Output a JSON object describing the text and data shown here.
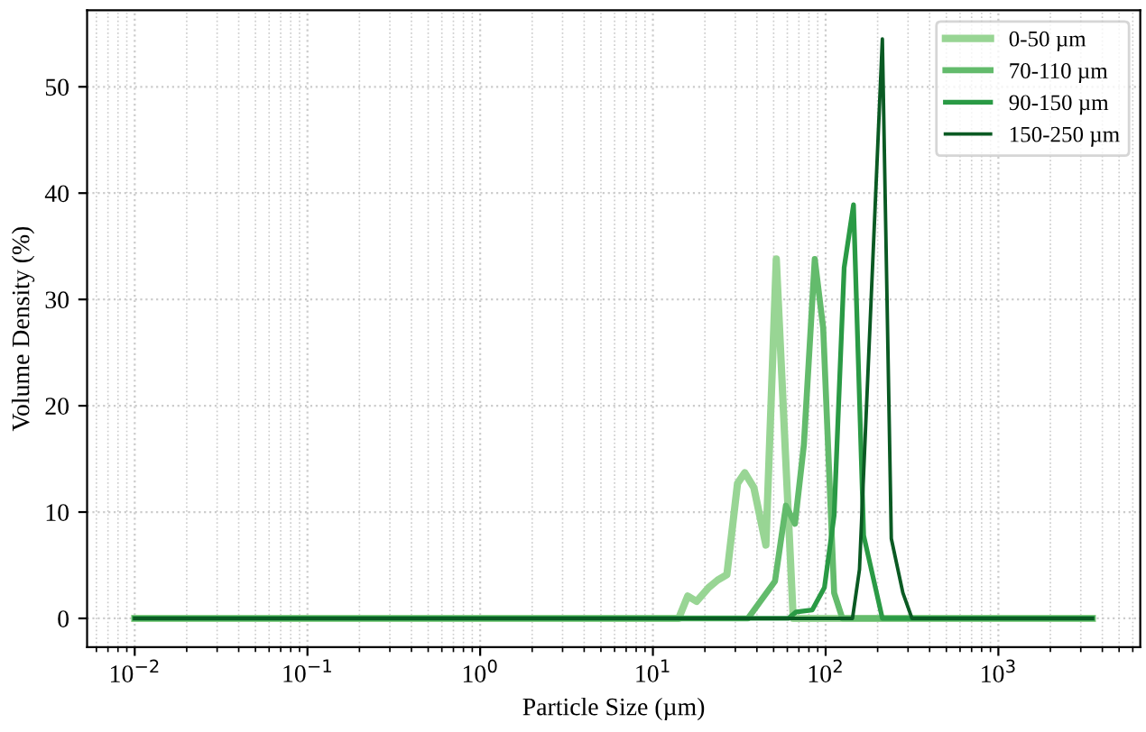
{
  "chart_data": {
    "type": "line",
    "xlabel": "Particle Size (µm)",
    "ylabel": "Volume Density (%)",
    "series": [
      {
        "name": "0-50 µm",
        "color": "#98d594",
        "x": [
          0.01,
          14.1,
          15.9,
          17.9,
          21.0,
          23.7,
          26.8,
          30.9,
          34.0,
          38.4,
          45.1,
          51.8,
          64.9,
          3500
        ],
        "values": [
          0,
          0,
          2.1,
          1.6,
          2.9,
          3.6,
          4.1,
          12.7,
          13.7,
          12.3,
          6.9,
          33.8,
          0,
          0
        ]
      },
      {
        "name": "70-110 µm",
        "color": "#63bb6c",
        "x": [
          0.01,
          35.5,
          50.9,
          58.9,
          66.4,
          74.8,
          86.5,
          96.8,
          112,
          125,
          3500
        ],
        "values": [
          0,
          0,
          3.5,
          10.6,
          8.9,
          16.3,
          33.8,
          27.3,
          2.4,
          0,
          0
        ]
      },
      {
        "name": "90-150 µm",
        "color": "#2a9a45",
        "x": [
          0.01,
          60.8,
          67.4,
          83.7,
          98.4,
          112,
          128,
          145,
          166,
          213,
          3500
        ],
        "values": [
          0,
          0,
          0.6,
          0.8,
          2.9,
          9.7,
          33.0,
          38.9,
          7.8,
          0,
          0
        ]
      },
      {
        "name": "150-250 µm",
        "color": "#0a5a23",
        "x": [
          0.01,
          143,
          157,
          213,
          240,
          280,
          316,
          3500
        ],
        "values": [
          0,
          0,
          4.6,
          54.5,
          7.5,
          2.4,
          0,
          0
        ]
      }
    ],
    "log": "x",
    "xlim": [
      0.0053,
      6630
    ],
    "ylim": [
      -2.7,
      57.2
    ],
    "xticks": [
      {
        "value": 0.01,
        "label": "10$^{−2}$"
      },
      {
        "value": 0.1,
        "label": "10$^{−1}$"
      },
      {
        "value": 1,
        "label": "10$^{0}$"
      },
      {
        "value": 10,
        "label": "10$^{1}$"
      },
      {
        "value": 100,
        "label": "10$^{2}$"
      },
      {
        "value": 1000,
        "label": "10$^{3}$"
      }
    ],
    "yticks": [
      0,
      10,
      20,
      30,
      40,
      50
    ],
    "grid": true,
    "legend": "top right",
    "marker": "none",
    "line_style": "solid"
  }
}
